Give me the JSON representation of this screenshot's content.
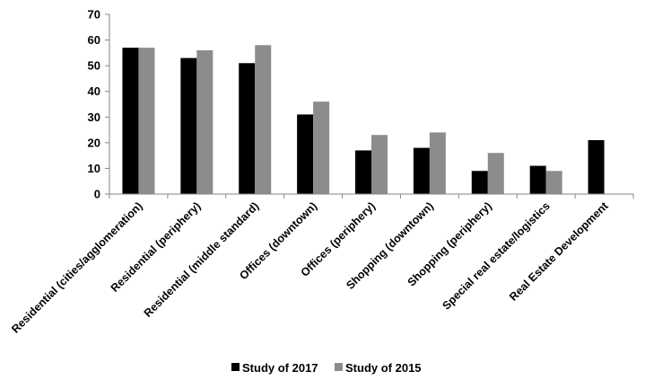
{
  "chart_data": {
    "type": "bar",
    "categories": [
      "Residential (cities/agglomeration)",
      "Residential (periphery)",
      "Residential (middle standard)",
      "Offices (downtown)",
      "Offices (periphery)",
      "Shopping (downtown)",
      "Shopping (periphery)",
      "Special real estate/logistics",
      "Real Estate Development"
    ],
    "series": [
      {
        "name": "Study of 2017",
        "color": "#000000",
        "values": [
          57,
          53,
          51,
          31,
          17,
          18,
          9,
          11,
          21
        ]
      },
      {
        "name": "Study of 2015",
        "color": "#8c8c8c",
        "values": [
          57,
          56,
          58,
          36,
          23,
          24,
          16,
          9,
          null
        ]
      }
    ],
    "ylim": [
      0,
      70
    ],
    "yticks": [
      0,
      10,
      20,
      30,
      40,
      50,
      60,
      70
    ],
    "title": "",
    "xlabel": "",
    "ylabel": "",
    "grid": false,
    "legend": "bottom"
  }
}
